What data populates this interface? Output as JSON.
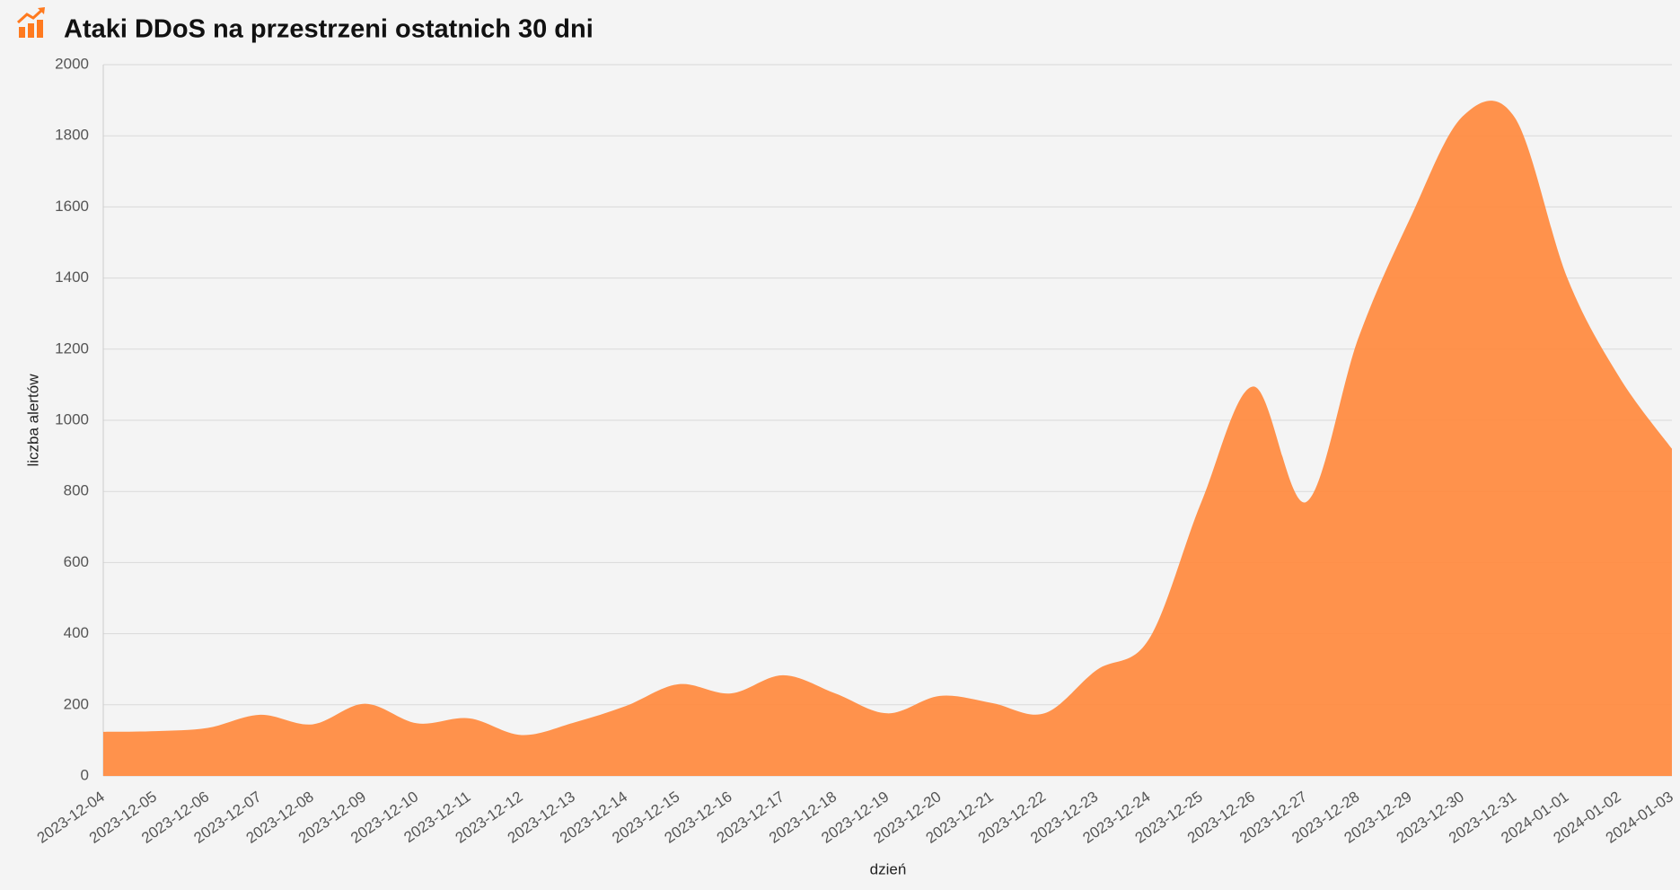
{
  "chart_data": {
    "type": "area",
    "title": "Ataki DDoS na przestrzeni ostatnich 30 dni",
    "x_label": "dzień",
    "y_label": "liczba alertów",
    "categories": [
      "2023-12-04",
      "2023-12-05",
      "2023-12-06",
      "2023-12-07",
      "2023-12-08",
      "2023-12-09",
      "2023-12-10",
      "2023-12-11",
      "2023-12-12",
      "2023-12-13",
      "2023-12-14",
      "2023-12-15",
      "2023-12-16",
      "2023-12-17",
      "2023-12-18",
      "2023-12-19",
      "2023-12-20",
      "2023-12-21",
      "2023-12-22",
      "2023-12-23",
      "2023-12-24",
      "2023-12-25",
      "2023-12-26",
      "2023-12-27",
      "2023-12-28",
      "2023-12-29",
      "2023-12-30",
      "2023-12-31",
      "2024-01-01",
      "2024-01-02",
      "2024-01-03"
    ],
    "values": [
      124,
      126,
      135,
      172,
      145,
      203,
      148,
      162,
      115,
      150,
      197,
      258,
      232,
      283,
      232,
      176,
      225,
      205,
      176,
      298,
      385,
      770,
      1095,
      770,
      1230,
      1570,
      1855,
      1850,
      1400,
      1120,
      920
    ],
    "color": "#ff8c42",
    "ylim": [
      0,
      2000
    ],
    "yticks": [
      0,
      200,
      400,
      600,
      800,
      1000,
      1200,
      1400,
      1600,
      1800,
      2000
    ],
    "grid": true
  }
}
